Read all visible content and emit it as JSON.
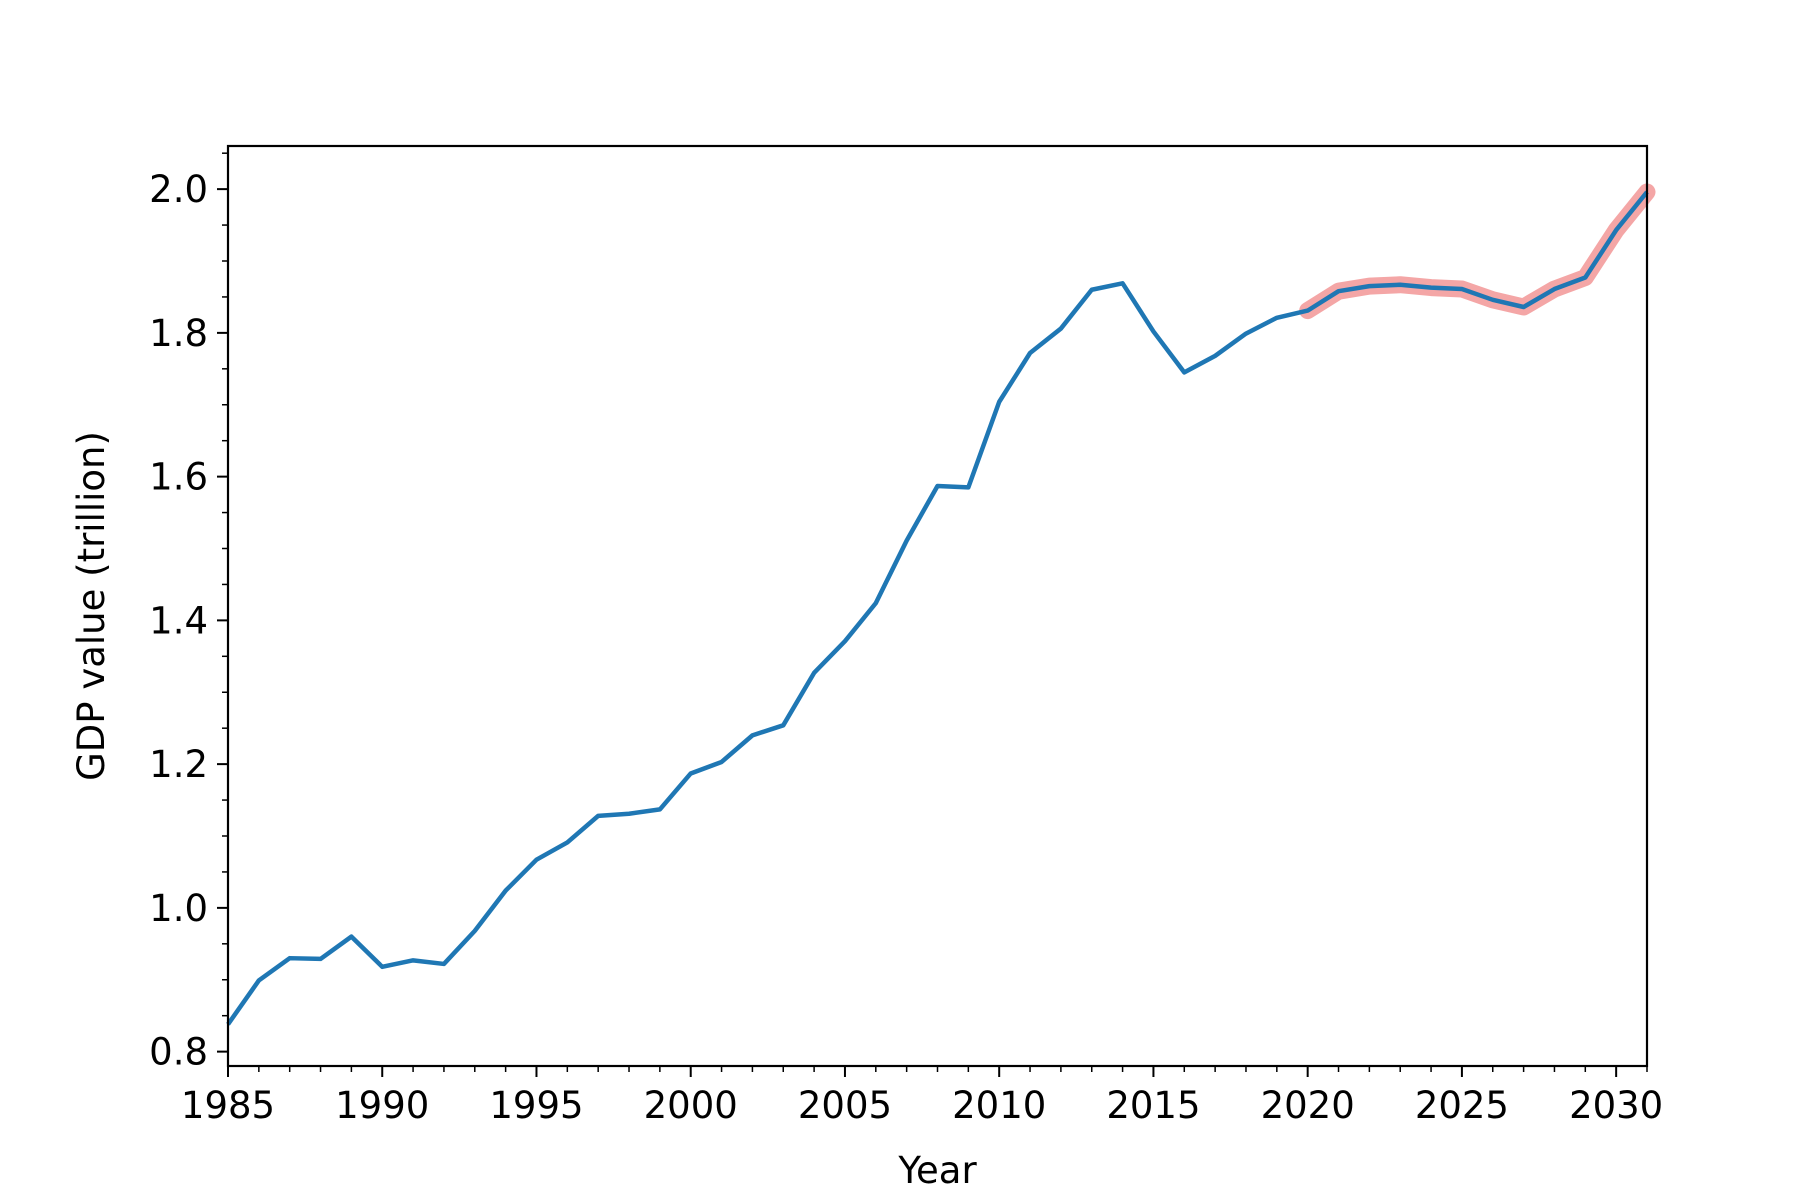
{
  "chart_data": {
    "type": "line",
    "title": "",
    "xlabel": "Year",
    "ylabel": "GDP value (trillion)",
    "xlim": [
      1985,
      2031
    ],
    "ylim": [
      0.78,
      2.06
    ],
    "x_ticks": [
      1985,
      1990,
      1995,
      2000,
      2005,
      2010,
      2015,
      2020,
      2025,
      2030
    ],
    "y_ticks": [
      0.8,
      1.0,
      1.2,
      1.4,
      1.6,
      1.8,
      2.0
    ],
    "y_tick_labels": [
      "0.8",
      "1.0",
      "1.2",
      "1.4",
      "1.6",
      "1.8",
      "2.0"
    ],
    "grid": false,
    "legend": "none",
    "colors": {
      "line": "#1f77b4",
      "highlight": "#f4a6a6"
    },
    "series": [
      {
        "x": [
          1985,
          1986,
          1987,
          1988,
          1989,
          1990,
          1991,
          1992,
          1993,
          1994,
          1995,
          1996,
          1997,
          1998,
          1999,
          2000,
          2001,
          2002,
          2003,
          2004,
          2005,
          2006,
          2007,
          2008,
          2009,
          2010,
          2011,
          2012,
          2013,
          2014,
          2015,
          2016,
          2017,
          2018,
          2019,
          2020,
          2021,
          2022,
          2023,
          2024,
          2025,
          2026,
          2027,
          2028,
          2029,
          2030,
          2031
        ],
        "values": [
          0.838,
          0.899,
          0.93,
          0.929,
          0.96,
          0.918,
          0.927,
          0.922,
          0.968,
          1.024,
          1.067,
          1.091,
          1.128,
          1.131,
          1.137,
          1.187,
          1.203,
          1.24,
          1.254,
          1.327,
          1.371,
          1.424,
          1.511,
          1.587,
          1.585,
          1.704,
          1.772,
          1.806,
          1.86,
          1.869,
          1.802,
          1.745,
          1.768,
          1.799,
          1.821,
          1.831,
          1.858,
          1.865,
          1.867,
          1.863,
          1.861,
          1.846,
          1.836,
          1.861,
          1.877,
          1.943,
          1.996
        ]
      }
    ],
    "highlight_segment": {
      "x_start": 2020,
      "x_end": 2031
    }
  }
}
